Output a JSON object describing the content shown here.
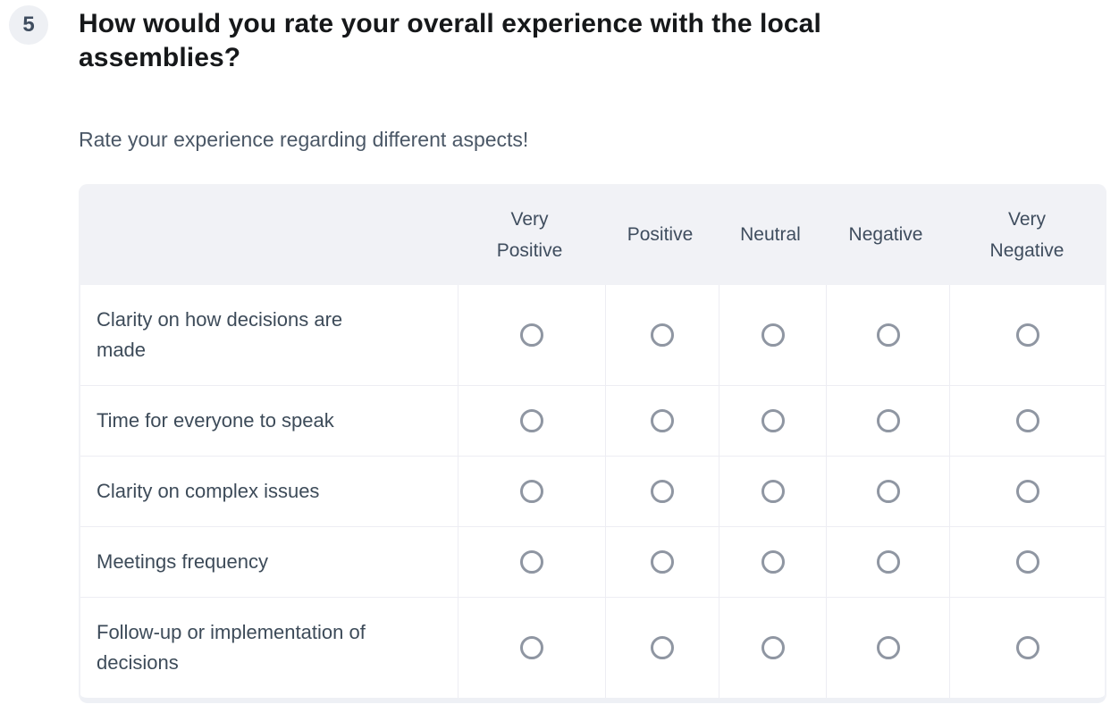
{
  "question": {
    "number": "5",
    "title": "How would you rate your overall experience with the local assemblies?",
    "subtitle": "Rate your experience regarding different aspects!"
  },
  "matrix": {
    "options": [
      "Very Positive",
      "Positive",
      "Neutral",
      "Negative",
      "Very Negative"
    ],
    "rows": [
      "Clarity on how decisions are made",
      "Time for everyone to speak",
      "Clarity on complex issues",
      "Meetings frequency",
      "Follow-up or implementation of decisions"
    ],
    "selection_state": "none selected"
  },
  "colors": {
    "header_background": "#f1f2f6",
    "header_text": "#3f4d5e",
    "row_text": "#3d4b59",
    "title_text": "#16181a",
    "subtitle_text": "#4a5766",
    "radio_border": "#8f96a2",
    "divider": "#ededf3",
    "badge_background": "#eef0f4"
  }
}
